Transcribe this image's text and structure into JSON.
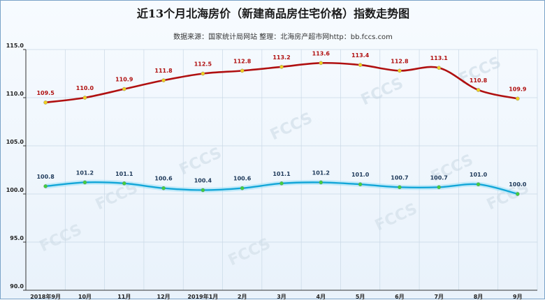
{
  "chart_data": {
    "type": "line",
    "title": "近13个月北海房价（新建商品房住宅价格）指数走势图",
    "subtitle": "数据来源：国家统计局网站    整理：北海房产超市网http：bb.fccs.com",
    "categories": [
      "2018年9月",
      "10月",
      "11月",
      "12月",
      "2019年1月",
      "2月",
      "3月",
      "4月",
      "5月",
      "6月",
      "7月",
      "8月",
      "9月"
    ],
    "ylim": [
      90.0,
      115.0
    ],
    "yticks": [
      "90.0",
      "95.0",
      "100.0",
      "105.0",
      "110.0",
      "115.0"
    ],
    "grid": true,
    "series": [
      {
        "values": [
          109.5,
          110.0,
          110.9,
          111.8,
          112.5,
          112.8,
          113.2,
          113.6,
          113.4,
          112.8,
          113.1,
          110.8,
          109.9
        ],
        "color": "#b01010",
        "marker": "#f0d020"
      },
      {
        "values": [
          100.8,
          101.2,
          101.1,
          100.6,
          100.4,
          100.6,
          101.1,
          101.2,
          101.0,
          100.7,
          100.7,
          101.0,
          100.0
        ],
        "color": "#12a6d8",
        "marker": "#40d040"
      }
    ],
    "watermark": "FCCS"
  }
}
